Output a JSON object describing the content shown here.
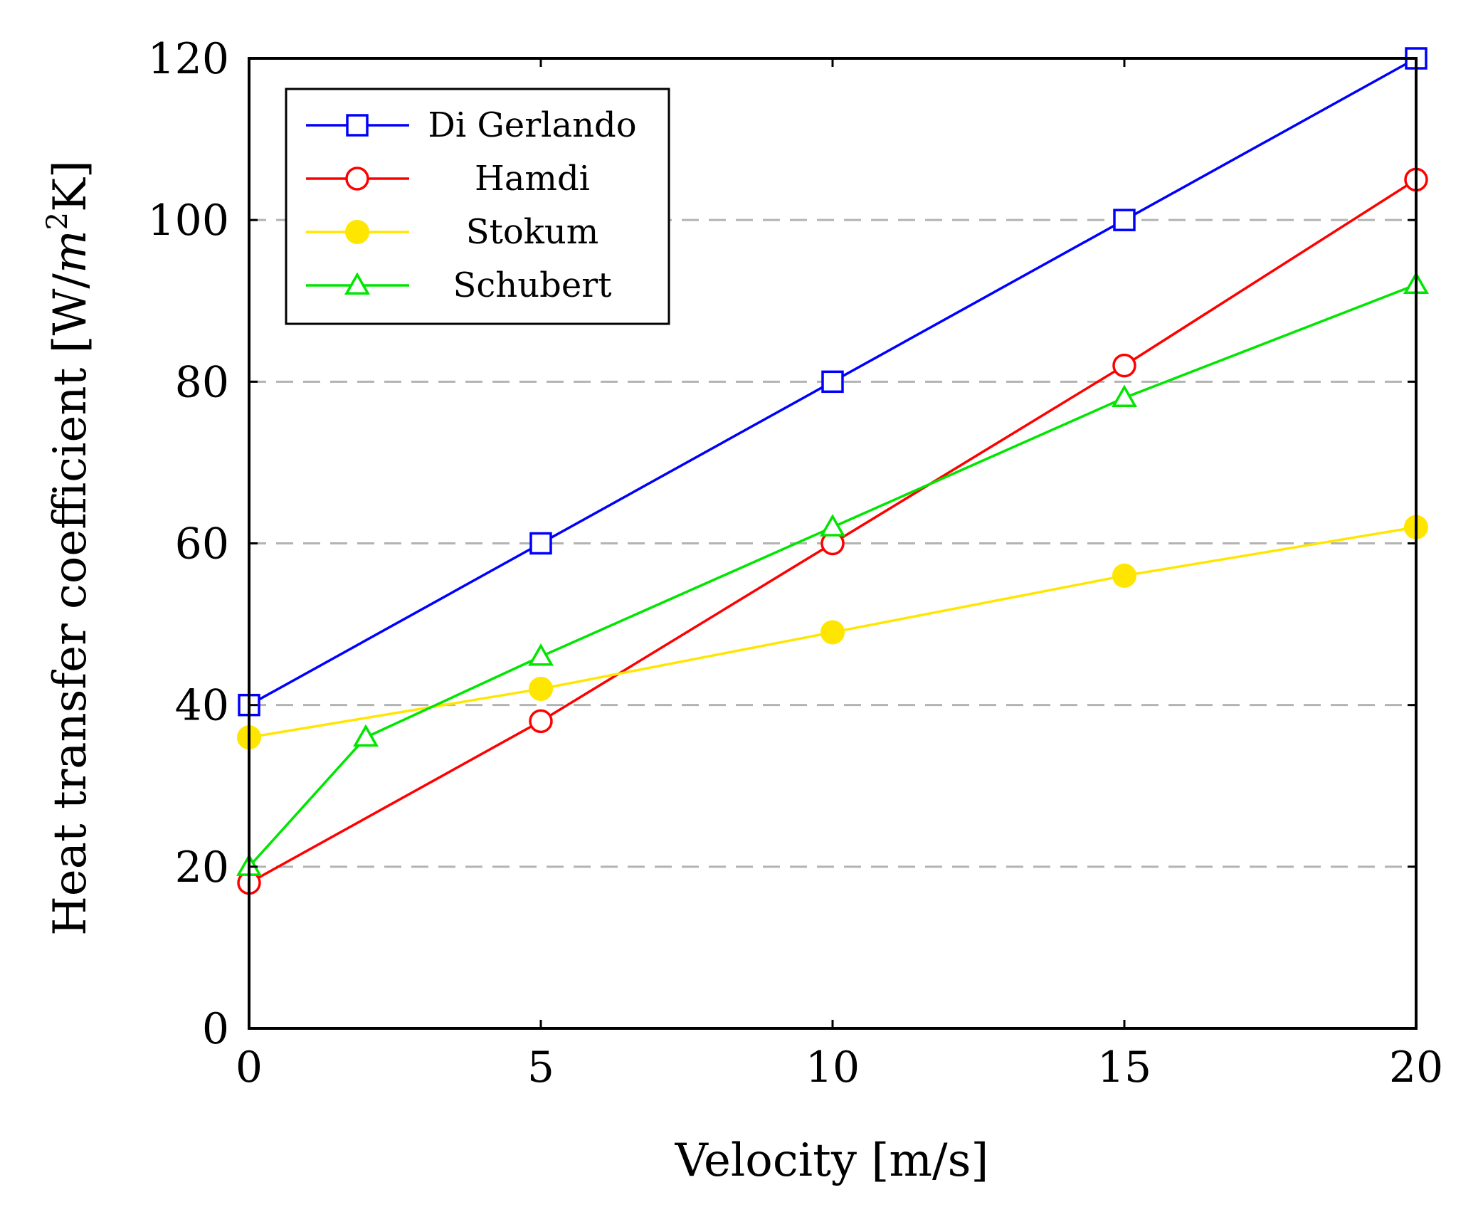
{
  "chart_data": {
    "type": "line",
    "xlabel": "Velocity [m/s]",
    "ylabel_main": "Heat transfer coefficient [W/",
    "ylabel_m": "m",
    "ylabel_sup": "2",
    "ylabel_end": "K]",
    "xlim": [
      0,
      20
    ],
    "ylim": [
      0,
      120
    ],
    "xticks": [
      0,
      5,
      10,
      15,
      20
    ],
    "yticks": [
      0,
      20,
      40,
      60,
      80,
      100,
      120
    ],
    "grid": "horizontal-dashed",
    "legend_position": "top-left",
    "series": [
      {
        "name": "Di Gerlando",
        "color": "#0000ff",
        "marker": "square-open",
        "x": [
          0,
          5,
          10,
          15,
          20
        ],
        "y": [
          40,
          60,
          80,
          100,
          120
        ]
      },
      {
        "name": "Hamdi",
        "color": "#ff0000",
        "marker": "circle-open",
        "x": [
          0,
          5,
          10,
          15,
          20
        ],
        "y": [
          18,
          38,
          60,
          82,
          105
        ]
      },
      {
        "name": "Stokum",
        "color": "#ffe600",
        "marker": "circle-filled",
        "x": [
          0,
          5,
          10,
          15,
          20
        ],
        "y": [
          36,
          42,
          49,
          56,
          62
        ]
      },
      {
        "name": "Schubert",
        "color": "#00e600",
        "marker": "triangle-open",
        "x": [
          0,
          2,
          5,
          10,
          15,
          20
        ],
        "y": [
          20,
          36,
          46,
          62,
          78,
          92
        ]
      }
    ]
  }
}
